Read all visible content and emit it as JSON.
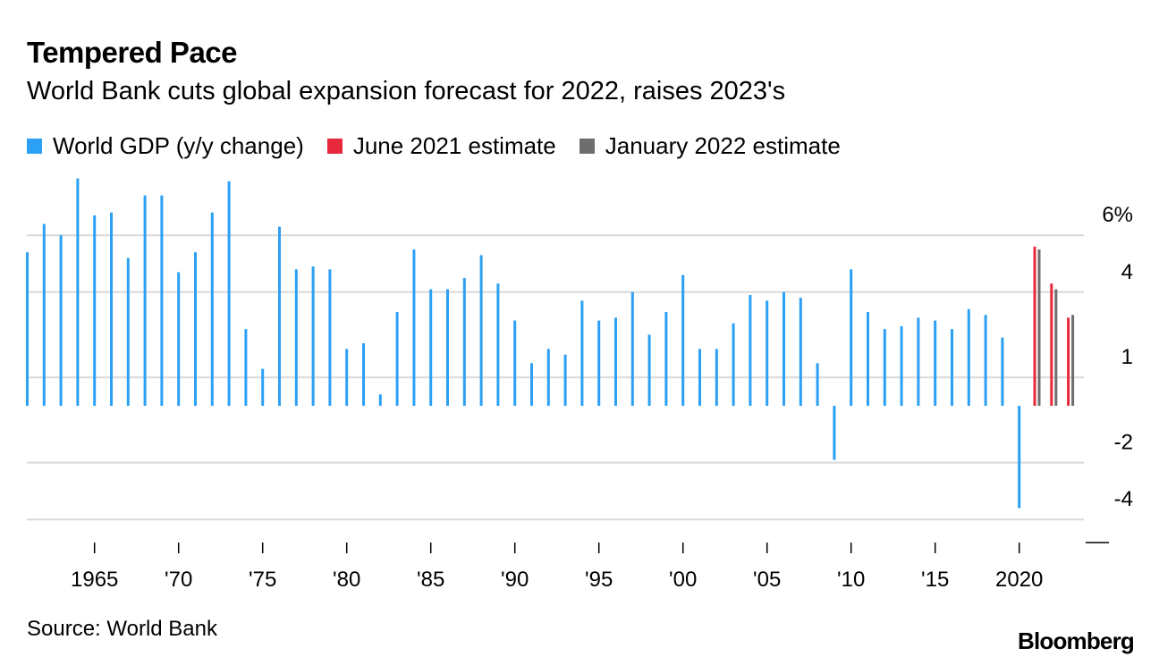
{
  "title": "Tempered Pace",
  "subtitle": "World Bank cuts global expansion forecast for 2022, raises 2023's",
  "legend": [
    {
      "label": "World GDP (y/y change)",
      "color": "#2ba0f4"
    },
    {
      "label": "June 2021 estimate",
      "color": "#e8283c"
    },
    {
      "label": "January 2022 estimate",
      "color": "#6e6e6e"
    }
  ],
  "source": "Source: World Bank",
  "logo": "Bloomberg",
  "chart_data": {
    "type": "bar",
    "ylim": [
      -5,
      7
    ],
    "y_ticks": [
      {
        "value": 6,
        "label": "6%"
      },
      {
        "value": 4,
        "label": "4"
      },
      {
        "value": 1,
        "label": "1"
      },
      {
        "value": -2,
        "label": "-2"
      },
      {
        "value": -4,
        "label": "-4"
      }
    ],
    "x_ticks": [
      {
        "year": 1965,
        "label": "1965"
      },
      {
        "year": 1970,
        "label": "'70"
      },
      {
        "year": 1975,
        "label": "'75"
      },
      {
        "year": 1980,
        "label": "'80"
      },
      {
        "year": 1985,
        "label": "'85"
      },
      {
        "year": 1990,
        "label": "'90"
      },
      {
        "year": 1995,
        "label": "'95"
      },
      {
        "year": 2000,
        "label": "'00"
      },
      {
        "year": 2005,
        "label": "'05"
      },
      {
        "year": 2010,
        "label": "'10"
      },
      {
        "year": 2015,
        "label": "'15"
      },
      {
        "year": 2020,
        "label": "2020"
      }
    ],
    "x_range": [
      1961,
      2023
    ],
    "series": [
      {
        "name": "World GDP (y/y change)",
        "color": "#2ba0f4",
        "x": [
          1961,
          1962,
          1963,
          1964,
          1965,
          1966,
          1967,
          1968,
          1969,
          1970,
          1971,
          1972,
          1973,
          1974,
          1975,
          1976,
          1977,
          1978,
          1979,
          1980,
          1981,
          1982,
          1983,
          1984,
          1985,
          1986,
          1987,
          1988,
          1989,
          1990,
          1991,
          1992,
          1993,
          1994,
          1995,
          1996,
          1997,
          1998,
          1999,
          2000,
          2001,
          2002,
          2003,
          2004,
          2005,
          2006,
          2007,
          2008,
          2009,
          2010,
          2011,
          2012,
          2013,
          2014,
          2015,
          2016,
          2017,
          2018,
          2019,
          2020
        ],
        "values": [
          5.4,
          6.4,
          6.0,
          8.0,
          6.7,
          6.8,
          5.2,
          7.4,
          7.4,
          4.7,
          5.4,
          6.8,
          7.9,
          2.7,
          1.3,
          6.3,
          4.8,
          4.9,
          4.8,
          2.0,
          2.2,
          0.4,
          3.3,
          5.5,
          4.1,
          4.1,
          4.5,
          5.3,
          4.3,
          3.0,
          1.5,
          2.0,
          1.8,
          3.7,
          3.0,
          3.1,
          4.0,
          2.5,
          3.3,
          4.6,
          2.0,
          2.0,
          2.9,
          3.9,
          3.7,
          4.0,
          3.8,
          1.5,
          -1.9,
          4.8,
          3.3,
          2.7,
          2.8,
          3.1,
          3.0,
          2.7,
          3.4,
          3.2,
          2.4,
          -3.6
        ]
      },
      {
        "name": "June 2021 estimate",
        "color": "#e8283c",
        "x": [
          2021,
          2022,
          2023
        ],
        "values": [
          5.6,
          4.3,
          3.1
        ]
      },
      {
        "name": "January 2022 estimate",
        "color": "#6e6e6e",
        "x": [
          2021,
          2022,
          2023
        ],
        "values": [
          5.5,
          4.1,
          3.2
        ]
      }
    ],
    "grid": true,
    "legend_position": "top"
  }
}
